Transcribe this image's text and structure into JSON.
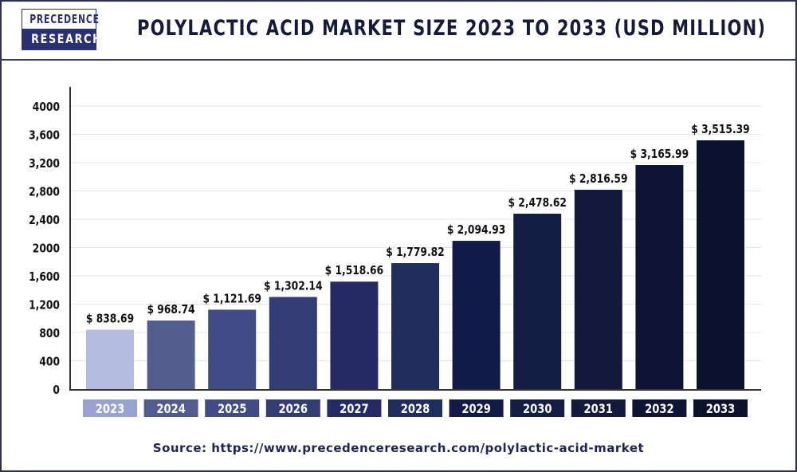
{
  "logo": {
    "line1": "PRECEDENCE",
    "line2": "RESEARCH"
  },
  "source": "Source: https://www.precedenceresearch.com/polylactic-acid-market",
  "chart_data": {
    "type": "bar",
    "title": "POLYLACTIC ACID MARKET SIZE 2023 TO 2033 (USD MILLION)",
    "xlabel": "",
    "ylabel": "",
    "ylim": [
      0,
      4000
    ],
    "yticks": [
      0,
      400,
      800,
      1200,
      1600,
      2000,
      2400,
      2800,
      3200,
      3600,
      4000
    ],
    "ytick_labels": [
      "0",
      "400",
      "800",
      "1,200",
      "1,600",
      "2000",
      "2,400",
      "2,800",
      "3,200",
      "3,600",
      "4000"
    ],
    "grid": true,
    "categories": [
      "2023",
      "2024",
      "2025",
      "2026",
      "2027",
      "2028",
      "2029",
      "2030",
      "2031",
      "2032",
      "2033"
    ],
    "values": [
      838.69,
      968.74,
      1121.69,
      1302.14,
      1518.66,
      1779.82,
      2094.93,
      2478.62,
      2816.59,
      3165.99,
      3515.39
    ],
    "data_labels": [
      "$ 838.69",
      "$ 968.74",
      "$ 1,121.69",
      "$ 1,302.14",
      "$ 1,518.66",
      "$ 1,779.82",
      "$ 2,094.93",
      "$ 2,478.62",
      "$ 2,816.59",
      "$ 3,165.99",
      "$ 3,515.39"
    ],
    "bar_colors": [
      "#b4bde0",
      "#525c8e",
      "#414b85",
      "#333d74",
      "#262a64",
      "#1f2e5c",
      "#121a48",
      "#141d44",
      "#131a3d",
      "#0f1535",
      "#0c122e"
    ],
    "label_box_colors": [
      "#98a3d2",
      "#525c8e",
      "#414b85",
      "#333d74",
      "#262a64",
      "#1f2e5c",
      "#121a48",
      "#141d44",
      "#131a3d",
      "#0f1535",
      "#0c122e"
    ]
  }
}
